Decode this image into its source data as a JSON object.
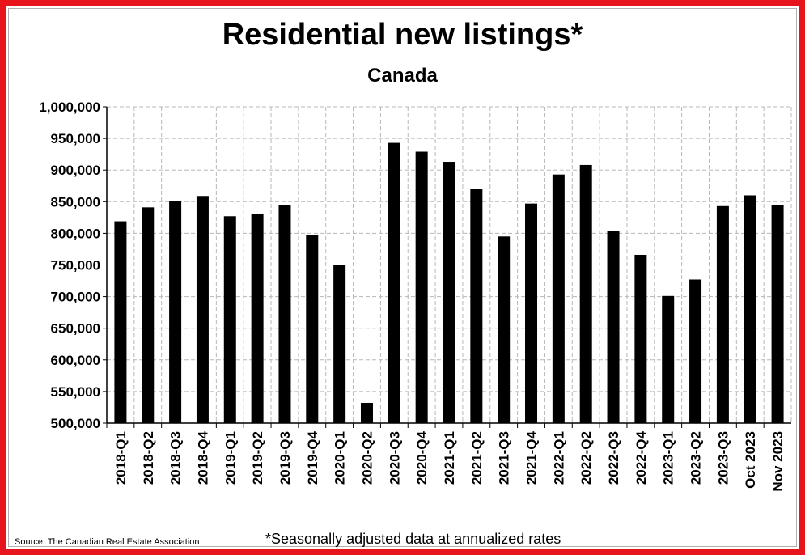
{
  "title": "Residential new listings*",
  "subtitle": "Canada",
  "source": "Source: The Canadian Real Estate Association",
  "footnote": "*Seasonally adjusted data at annualized rates",
  "colors": {
    "bar": "#000000",
    "frame": "#e8141b",
    "grid": "#b8b8b8"
  },
  "chart_data": {
    "type": "bar",
    "title": "Residential new listings*",
    "subtitle": "Canada",
    "categories": [
      "2018-Q1",
      "2018-Q2",
      "2018-Q3",
      "2018-Q4",
      "2019-Q1",
      "2019-Q2",
      "2019-Q3",
      "2019-Q4",
      "2020-Q1",
      "2020-Q2",
      "2020-Q3",
      "2020-Q4",
      "2021-Q1",
      "2021-Q2",
      "2021-Q3",
      "2021-Q4",
      "2022-Q1",
      "2022-Q2",
      "2022-Q3",
      "2022-Q4",
      "2023-Q1",
      "2023-Q2",
      "2023-Q3",
      "Oct 2023",
      "Nov 2023"
    ],
    "values": [
      819000,
      841000,
      851000,
      859000,
      827000,
      830000,
      845000,
      797000,
      750000,
      532000,
      943000,
      929000,
      913000,
      870000,
      795000,
      847000,
      893000,
      908000,
      804000,
      766000,
      701000,
      727000,
      843000,
      860000,
      845000
    ],
    "ylim": [
      500000,
      1000000
    ],
    "yticks": [
      "500,000",
      "550,000",
      "600,000",
      "650,000",
      "700,000",
      "750,000",
      "800,000",
      "850,000",
      "900,000",
      "950,000",
      "1,000,000"
    ],
    "grid": true,
    "xlabel": "",
    "ylabel": ""
  }
}
